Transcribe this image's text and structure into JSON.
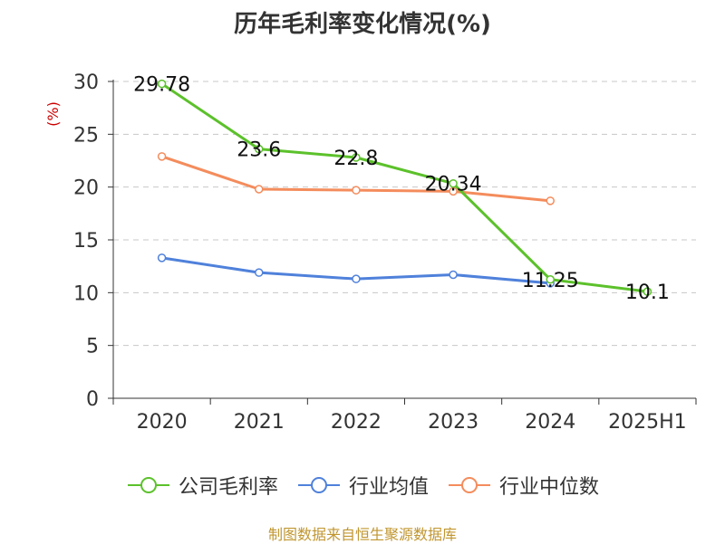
{
  "page": {
    "title": "历年毛利率变化情况(%)",
    "footer": "制图数据来自恒生聚源数据库"
  },
  "chart_data": {
    "type": "line",
    "title": "历年毛利率变化情况(%)",
    "ylabel": "(%)",
    "xlabel": "",
    "categories": [
      "2020",
      "2021",
      "2022",
      "2023",
      "2024",
      "2025H1"
    ],
    "ylim": [
      0,
      30
    ],
    "yticks": [
      0,
      5,
      10,
      15,
      20,
      25,
      30
    ],
    "grid": true,
    "legend_position": "bottom",
    "series": [
      {
        "name": "公司毛利率",
        "color": "#5cc12b",
        "labels": true,
        "values": [
          29.78,
          23.6,
          22.8,
          20.34,
          11.25,
          10.1
        ]
      },
      {
        "name": "行业均值",
        "color": "#4f81db",
        "labels": false,
        "values": [
          13.3,
          11.9,
          11.3,
          11.7,
          10.9,
          null
        ]
      },
      {
        "name": "行业中位数",
        "color": "#f48c5c",
        "labels": false,
        "values": [
          22.9,
          19.8,
          19.7,
          19.6,
          18.7,
          null
        ]
      }
    ]
  }
}
